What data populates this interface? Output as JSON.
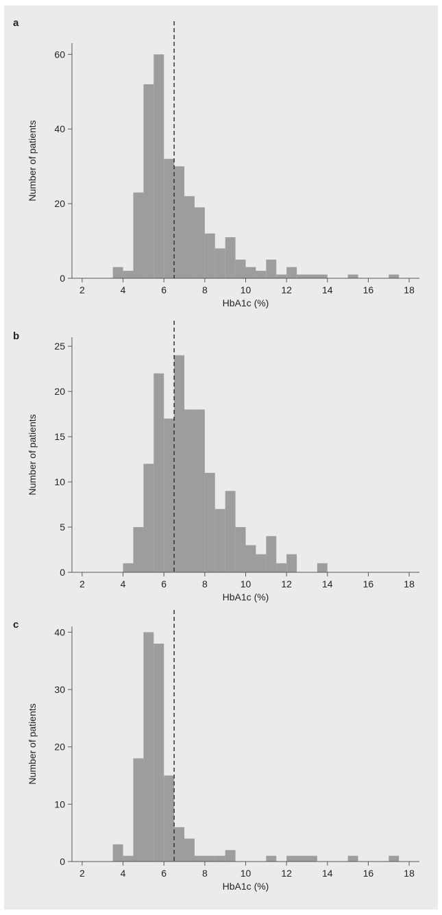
{
  "colors": {
    "background": "#ebebeb",
    "bar_fill": "#9d9d9d",
    "axis": "#555555",
    "reference_line": "#333333"
  },
  "chart_data": [
    {
      "type": "bar",
      "panel_label": "a",
      "xlabel": "HbA1c (%)",
      "ylabel": "Number of patients",
      "xlim": [
        1.5,
        18.5
      ],
      "ylim": [
        0,
        63
      ],
      "xticks": [
        2,
        4,
        6,
        8,
        10,
        12,
        14,
        16,
        18
      ],
      "yticks": [
        0,
        20,
        40,
        60
      ],
      "bin_width": 0.5,
      "reference_line_x": 6.5,
      "bins": [
        {
          "x": 3.75,
          "value": 3
        },
        {
          "x": 4.25,
          "value": 2
        },
        {
          "x": 4.75,
          "value": 23
        },
        {
          "x": 5.25,
          "value": 52
        },
        {
          "x": 5.75,
          "value": 60
        },
        {
          "x": 6.25,
          "value": 32
        },
        {
          "x": 6.75,
          "value": 30
        },
        {
          "x": 7.25,
          "value": 22
        },
        {
          "x": 7.75,
          "value": 19
        },
        {
          "x": 8.25,
          "value": 12
        },
        {
          "x": 8.75,
          "value": 8
        },
        {
          "x": 9.25,
          "value": 11
        },
        {
          "x": 9.75,
          "value": 5
        },
        {
          "x": 10.25,
          "value": 3
        },
        {
          "x": 10.75,
          "value": 2
        },
        {
          "x": 11.25,
          "value": 5
        },
        {
          "x": 11.75,
          "value": 1
        },
        {
          "x": 12.25,
          "value": 3
        },
        {
          "x": 12.75,
          "value": 1
        },
        {
          "x": 13.25,
          "value": 1
        },
        {
          "x": 13.75,
          "value": 1
        },
        {
          "x": 15.25,
          "value": 1
        },
        {
          "x": 17.25,
          "value": 1
        }
      ]
    },
    {
      "type": "bar",
      "panel_label": "b",
      "xlabel": "HbA1c (%)",
      "ylabel": "Number of patients",
      "xlim": [
        1.5,
        18.5
      ],
      "ylim": [
        0,
        26
      ],
      "xticks": [
        2,
        4,
        6,
        8,
        10,
        12,
        14,
        16,
        18
      ],
      "yticks": [
        0,
        5,
        10,
        15,
        20,
        25
      ],
      "bin_width": 0.5,
      "reference_line_x": 6.5,
      "bins": [
        {
          "x": 4.25,
          "value": 1
        },
        {
          "x": 4.75,
          "value": 5
        },
        {
          "x": 5.25,
          "value": 12
        },
        {
          "x": 5.75,
          "value": 22
        },
        {
          "x": 6.25,
          "value": 17
        },
        {
          "x": 6.75,
          "value": 24
        },
        {
          "x": 7.25,
          "value": 18
        },
        {
          "x": 7.75,
          "value": 18
        },
        {
          "x": 8.25,
          "value": 11
        },
        {
          "x": 8.75,
          "value": 7
        },
        {
          "x": 9.25,
          "value": 9
        },
        {
          "x": 9.75,
          "value": 5
        },
        {
          "x": 10.25,
          "value": 3
        },
        {
          "x": 10.75,
          "value": 2
        },
        {
          "x": 11.25,
          "value": 4
        },
        {
          "x": 11.75,
          "value": 1
        },
        {
          "x": 12.25,
          "value": 2
        },
        {
          "x": 13.75,
          "value": 1
        }
      ]
    },
    {
      "type": "bar",
      "panel_label": "c",
      "xlabel": "HbA1c (%)",
      "ylabel": "Number of patients",
      "xlim": [
        1.5,
        18.5
      ],
      "ylim": [
        0,
        41
      ],
      "xticks": [
        2,
        4,
        6,
        8,
        10,
        12,
        14,
        16,
        18
      ],
      "yticks": [
        0,
        10,
        20,
        30,
        40
      ],
      "bin_width": 0.5,
      "reference_line_x": 6.5,
      "bins": [
        {
          "x": 3.75,
          "value": 3
        },
        {
          "x": 4.25,
          "value": 1
        },
        {
          "x": 4.75,
          "value": 18
        },
        {
          "x": 5.25,
          "value": 40
        },
        {
          "x": 5.75,
          "value": 38
        },
        {
          "x": 6.25,
          "value": 15
        },
        {
          "x": 6.75,
          "value": 6
        },
        {
          "x": 7.25,
          "value": 4
        },
        {
          "x": 7.75,
          "value": 1
        },
        {
          "x": 8.25,
          "value": 1
        },
        {
          "x": 8.75,
          "value": 1
        },
        {
          "x": 9.25,
          "value": 2
        },
        {
          "x": 11.25,
          "value": 1
        },
        {
          "x": 12.25,
          "value": 1
        },
        {
          "x": 12.75,
          "value": 1
        },
        {
          "x": 13.25,
          "value": 1
        },
        {
          "x": 15.25,
          "value": 1
        },
        {
          "x": 17.25,
          "value": 1
        }
      ]
    }
  ]
}
